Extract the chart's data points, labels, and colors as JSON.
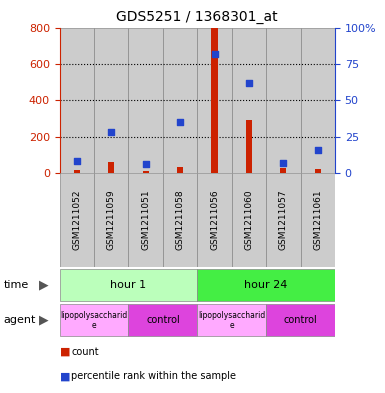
{
  "title": "GDS5251 / 1368301_at",
  "samples": [
    "GSM1211052",
    "GSM1211059",
    "GSM1211051",
    "GSM1211058",
    "GSM1211056",
    "GSM1211060",
    "GSM1211057",
    "GSM1211061"
  ],
  "counts": [
    15,
    60,
    10,
    30,
    800,
    290,
    25,
    20
  ],
  "percentiles": [
    8,
    28,
    6,
    35,
    82,
    62,
    7,
    16
  ],
  "ylim_left": [
    0,
    800
  ],
  "ylim_right": [
    0,
    100
  ],
  "yticks_left": [
    0,
    200,
    400,
    600,
    800
  ],
  "yticks_right": [
    0,
    25,
    50,
    75,
    100
  ],
  "time_labels": [
    "hour 1",
    "hour 24"
  ],
  "time_colors": [
    "#bbffbb",
    "#44ee44"
  ],
  "agent_labels": [
    "lipopolysaccharid\ne",
    "control",
    "lipopolysaccharid\ne",
    "control"
  ],
  "agent_colors_lps": "#ffaaff",
  "agent_colors_ctrl": "#dd44dd",
  "bar_color": "#cc2200",
  "dot_color": "#2244cc",
  "bg_color": "#cccccc",
  "grid_color": "#000000",
  "left_axis_color": "#cc2200",
  "right_axis_color": "#2244cc",
  "fig_width": 3.85,
  "fig_height": 3.93,
  "dpi": 100
}
